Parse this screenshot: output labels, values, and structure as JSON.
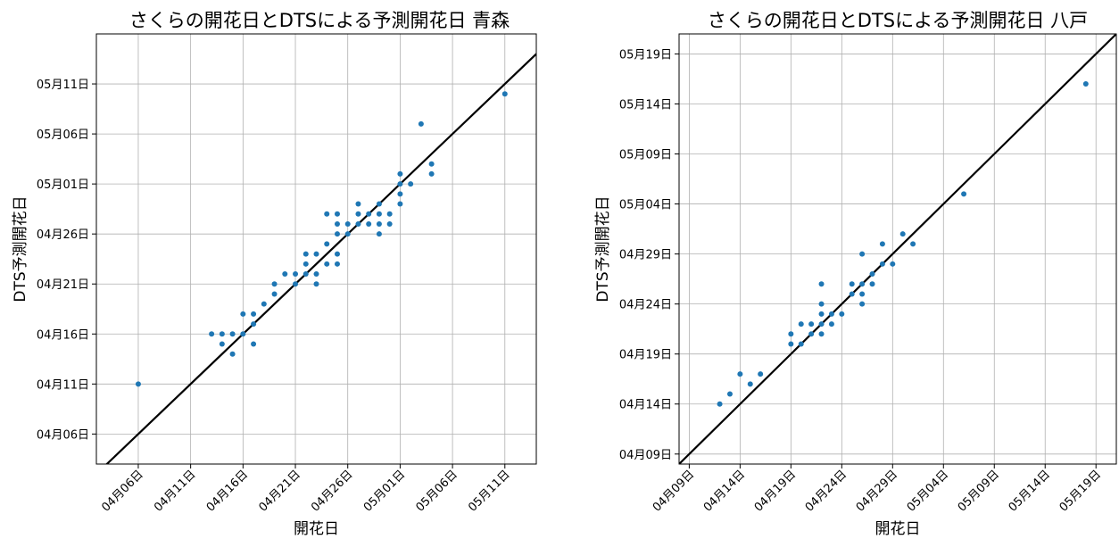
{
  "chart_data": [
    {
      "type": "scatter",
      "title": "さくらの開花日とDTSによる予測開花日 青森",
      "xlabel": "開花日",
      "ylabel": "DTS予測開花日",
      "xlim": [
        "2000-04-02",
        "2000-05-14"
      ],
      "ylim": [
        "2000-04-03",
        "2000-05-16"
      ],
      "xticks": [
        "04月06日",
        "04月11日",
        "04月16日",
        "04月21日",
        "04月26日",
        "05月01日",
        "05月06日",
        "05月11日"
      ],
      "yticks": [
        "04月06日",
        "04月11日",
        "04月16日",
        "04月21日",
        "04月26日",
        "05月01日",
        "05月06日",
        "05月11日"
      ],
      "grid": true,
      "series": [
        {
          "color": "#1f77b4",
          "points": [
            [
              "2000-04-06",
              "2000-04-11"
            ],
            [
              "2000-04-13",
              "2000-04-16"
            ],
            [
              "2000-04-14",
              "2000-04-16"
            ],
            [
              "2000-04-14",
              "2000-04-15"
            ],
            [
              "2000-04-15",
              "2000-04-16"
            ],
            [
              "2000-04-15",
              "2000-04-14"
            ],
            [
              "2000-04-16",
              "2000-04-18"
            ],
            [
              "2000-04-16",
              "2000-04-16"
            ],
            [
              "2000-04-17",
              "2000-04-18"
            ],
            [
              "2000-04-17",
              "2000-04-17"
            ],
            [
              "2000-04-17",
              "2000-04-15"
            ],
            [
              "2000-04-18",
              "2000-04-19"
            ],
            [
              "2000-04-19",
              "2000-04-21"
            ],
            [
              "2000-04-19",
              "2000-04-20"
            ],
            [
              "2000-04-20",
              "2000-04-22"
            ],
            [
              "2000-04-21",
              "2000-04-22"
            ],
            [
              "2000-04-21",
              "2000-04-21"
            ],
            [
              "2000-04-22",
              "2000-04-24"
            ],
            [
              "2000-04-22",
              "2000-04-23"
            ],
            [
              "2000-04-22",
              "2000-04-22"
            ],
            [
              "2000-04-23",
              "2000-04-24"
            ],
            [
              "2000-04-23",
              "2000-04-22"
            ],
            [
              "2000-04-23",
              "2000-04-21"
            ],
            [
              "2000-04-24",
              "2000-04-28"
            ],
            [
              "2000-04-24",
              "2000-04-25"
            ],
            [
              "2000-04-24",
              "2000-04-23"
            ],
            [
              "2000-04-25",
              "2000-04-28"
            ],
            [
              "2000-04-25",
              "2000-04-27"
            ],
            [
              "2000-04-25",
              "2000-04-26"
            ],
            [
              "2000-04-25",
              "2000-04-24"
            ],
            [
              "2000-04-25",
              "2000-04-23"
            ],
            [
              "2000-04-26",
              "2000-04-27"
            ],
            [
              "2000-04-26",
              "2000-04-26"
            ],
            [
              "2000-04-27",
              "2000-04-29"
            ],
            [
              "2000-04-27",
              "2000-04-28"
            ],
            [
              "2000-04-27",
              "2000-04-27"
            ],
            [
              "2000-04-28",
              "2000-04-28"
            ],
            [
              "2000-04-28",
              "2000-04-27"
            ],
            [
              "2000-04-29",
              "2000-04-29"
            ],
            [
              "2000-04-29",
              "2000-04-28"
            ],
            [
              "2000-04-29",
              "2000-04-27"
            ],
            [
              "2000-04-29",
              "2000-04-26"
            ],
            [
              "2000-04-30",
              "2000-04-28"
            ],
            [
              "2000-04-30",
              "2000-04-27"
            ],
            [
              "2000-05-01",
              "2000-05-02"
            ],
            [
              "2000-05-01",
              "2000-05-01"
            ],
            [
              "2000-05-01",
              "2000-04-30"
            ],
            [
              "2000-05-01",
              "2000-04-29"
            ],
            [
              "2000-05-02",
              "2000-05-01"
            ],
            [
              "2000-05-03",
              "2000-05-07"
            ],
            [
              "2000-05-04",
              "2000-05-03"
            ],
            [
              "2000-05-04",
              "2000-05-02"
            ],
            [
              "2000-05-11",
              "2000-05-10"
            ]
          ]
        }
      ]
    },
    {
      "type": "scatter",
      "title": "さくらの開花日とDTSによる予測開花日 八戸",
      "xlabel": "開花日",
      "ylabel": "DTS予測開花日",
      "xlim": [
        "2000-04-08",
        "2000-05-21"
      ],
      "ylim": [
        "2000-04-08",
        "2000-05-21"
      ],
      "xticks": [
        "04月09日",
        "04月14日",
        "04月19日",
        "04月24日",
        "04月29日",
        "05月04日",
        "05月09日",
        "05月14日",
        "05月19日"
      ],
      "yticks": [
        "04月09日",
        "04月14日",
        "04月19日",
        "04月24日",
        "04月29日",
        "05月04日",
        "05月09日",
        "05月14日",
        "05月19日"
      ],
      "grid": true,
      "series": [
        {
          "color": "#1f77b4",
          "points": [
            [
              "2000-04-12",
              "2000-04-14"
            ],
            [
              "2000-04-13",
              "2000-04-15"
            ],
            [
              "2000-04-14",
              "2000-04-17"
            ],
            [
              "2000-04-15",
              "2000-04-16"
            ],
            [
              "2000-04-16",
              "2000-04-17"
            ],
            [
              "2000-04-19",
              "2000-04-21"
            ],
            [
              "2000-04-19",
              "2000-04-20"
            ],
            [
              "2000-04-20",
              "2000-04-22"
            ],
            [
              "2000-04-20",
              "2000-04-20"
            ],
            [
              "2000-04-21",
              "2000-04-22"
            ],
            [
              "2000-04-21",
              "2000-04-21"
            ],
            [
              "2000-04-22",
              "2000-04-26"
            ],
            [
              "2000-04-22",
              "2000-04-24"
            ],
            [
              "2000-04-22",
              "2000-04-23"
            ],
            [
              "2000-04-22",
              "2000-04-22"
            ],
            [
              "2000-04-22",
              "2000-04-21"
            ],
            [
              "2000-04-23",
              "2000-04-23"
            ],
            [
              "2000-04-23",
              "2000-04-22"
            ],
            [
              "2000-04-24",
              "2000-04-23"
            ],
            [
              "2000-04-25",
              "2000-04-26"
            ],
            [
              "2000-04-25",
              "2000-04-25"
            ],
            [
              "2000-04-26",
              "2000-04-29"
            ],
            [
              "2000-04-26",
              "2000-04-26"
            ],
            [
              "2000-04-26",
              "2000-04-25"
            ],
            [
              "2000-04-26",
              "2000-04-24"
            ],
            [
              "2000-04-27",
              "2000-04-27"
            ],
            [
              "2000-04-27",
              "2000-04-26"
            ],
            [
              "2000-04-28",
              "2000-04-30"
            ],
            [
              "2000-04-28",
              "2000-04-28"
            ],
            [
              "2000-04-29",
              "2000-04-28"
            ],
            [
              "2000-04-30",
              "2000-05-01"
            ],
            [
              "2000-05-01",
              "2000-04-30"
            ],
            [
              "2000-05-06",
              "2000-05-05"
            ],
            [
              "2000-05-18",
              "2000-05-16"
            ]
          ]
        }
      ]
    }
  ]
}
